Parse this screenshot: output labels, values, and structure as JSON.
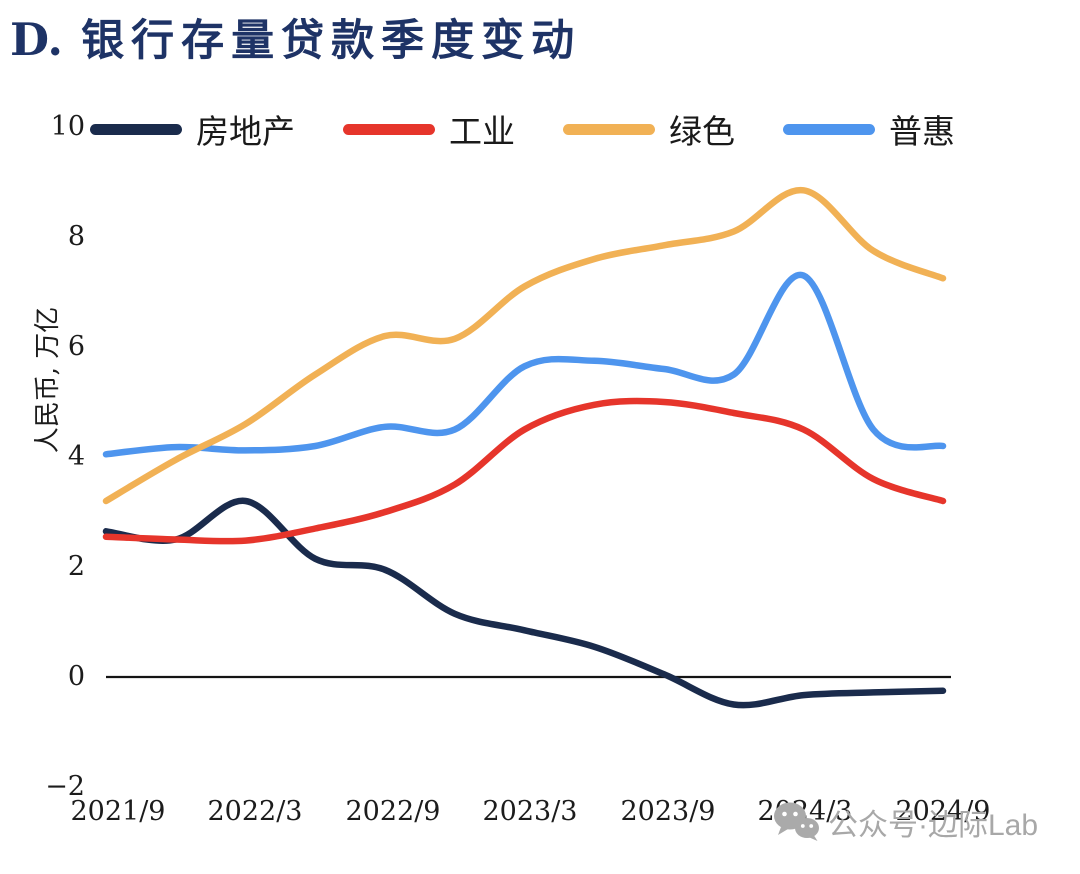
{
  "title": {
    "prefix": "D.",
    "text": "银行存量贷款季度变动"
  },
  "y_axis": {
    "label": "人民币, 万亿",
    "tick_labels": [
      "10",
      "8",
      "6",
      "4",
      "2",
      "0",
      "−2"
    ]
  },
  "x_axis": {
    "tick_labels": [
      "2021/9",
      "2022/3",
      "2022/9",
      "2023/3",
      "2023/9",
      "2024/3",
      "2024/9"
    ]
  },
  "watermark": {
    "icon": "wechat-icon",
    "text": "公众号·边际Lab"
  },
  "chart_data": {
    "type": "line",
    "title": "D. 银行存量贷款季度变动",
    "xlabel": "",
    "ylabel": "人民币, 万亿",
    "ylim": [
      -2,
      10
    ],
    "yticks": [
      10,
      8,
      6,
      4,
      2,
      0,
      -2
    ],
    "x": [
      "2021/9",
      "2021/12",
      "2022/3",
      "2022/6",
      "2022/9",
      "2022/12",
      "2023/3",
      "2023/6",
      "2023/9",
      "2023/12",
      "2024/3",
      "2024/6",
      "2024/9"
    ],
    "x_tick_labels": [
      "2021/9",
      "2022/3",
      "2022/9",
      "2023/3",
      "2023/9",
      "2024/3",
      "2024/9"
    ],
    "grid": false,
    "zero_baseline": true,
    "legend_position": "top",
    "series": [
      {
        "name": "房地产",
        "color": "#1a2b4c",
        "values": [
          2.65,
          2.5,
          3.2,
          2.15,
          1.95,
          1.15,
          0.85,
          0.55,
          0.05,
          -0.5,
          -0.33,
          -0.28,
          -0.25
        ]
      },
      {
        "name": "工业",
        "color": "#e6352b",
        "values": [
          2.55,
          2.5,
          2.48,
          2.7,
          3.0,
          3.5,
          4.5,
          4.95,
          5.0,
          4.8,
          4.5,
          3.6,
          3.2
        ]
      },
      {
        "name": "绿色",
        "color": "#f1b155",
        "values": [
          3.2,
          3.95,
          4.6,
          5.5,
          6.2,
          6.15,
          7.1,
          7.6,
          7.85,
          8.1,
          8.85,
          7.75,
          7.25
        ]
      },
      {
        "name": "普惠",
        "color": "#4e95ee",
        "values": [
          4.05,
          4.18,
          4.12,
          4.2,
          4.55,
          4.5,
          5.65,
          5.75,
          5.6,
          5.5,
          7.3,
          4.5,
          4.2
        ]
      }
    ],
    "draw_order": [
      0,
      3,
      2,
      1
    ]
  }
}
